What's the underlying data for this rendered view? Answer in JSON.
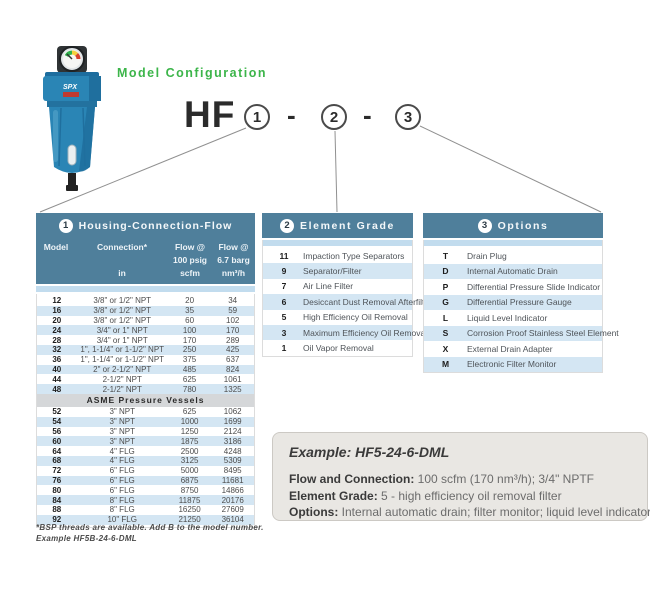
{
  "header": {
    "config_title": "Model Configuration",
    "model_prefix": "HF",
    "part1": "1",
    "part2": "2",
    "part3": "3",
    "dash": "-"
  },
  "product": {
    "brand": "SPX"
  },
  "housing": {
    "badge": "1",
    "title": "Housing-Connection-Flow",
    "columns": [
      {
        "l1": "Model",
        "l2": "",
        "l3": ""
      },
      {
        "l1": "Connection*",
        "l2": "",
        "l3": "in"
      },
      {
        "l1": "Flow @",
        "l2": "100 psig",
        "l3": "scfm"
      },
      {
        "l1": "Flow @",
        "l2": "6.7 barg",
        "l3": "nm³/h"
      }
    ],
    "rows": [
      [
        "12",
        "3/8\" or 1/2\" NPT",
        "20",
        "34"
      ],
      [
        "16",
        "3/8\" or 1/2\" NPT",
        "35",
        "59"
      ],
      [
        "20",
        "3/8\" or 1/2\" NPT",
        "60",
        "102"
      ],
      [
        "24",
        "3/4\" or 1\" NPT",
        "100",
        "170"
      ],
      [
        "28",
        "3/4\" or 1\" NPT",
        "170",
        "289"
      ],
      [
        "32",
        "1\", 1-1/4\" or 1-1/2\" NPT",
        "250",
        "425"
      ],
      [
        "36",
        "1\", 1-1/4\" or 1-1/2\" NPT",
        "375",
        "637"
      ],
      [
        "40",
        "2\" or 2-1/2\" NPT",
        "485",
        "824"
      ],
      [
        "44",
        "2-1/2\" NPT",
        "625",
        "1061"
      ],
      [
        "48",
        "2-1/2\" NPT",
        "780",
        "1325"
      ]
    ],
    "section_label": "ASME Pressure Vessels",
    "asme_rows": [
      [
        "52",
        "3\" NPT",
        "625",
        "1062"
      ],
      [
        "54",
        "3\" NPT",
        "1000",
        "1699"
      ],
      [
        "56",
        "3\" NPT",
        "1250",
        "2124"
      ],
      [
        "60",
        "3\" NPT",
        "1875",
        "3186"
      ],
      [
        "64",
        "4\" FLG",
        "2500",
        "4248"
      ],
      [
        "68",
        "4\" FLG",
        "3125",
        "5309"
      ],
      [
        "72",
        "6\" FLG",
        "5000",
        "8495"
      ],
      [
        "76",
        "6\" FLG",
        "6875",
        "11681"
      ],
      [
        "80",
        "6\" FLG",
        "8750",
        "14866"
      ],
      [
        "84",
        "8\" FLG",
        "11875",
        "20176"
      ],
      [
        "88",
        "8\" FLG",
        "16250",
        "27609"
      ],
      [
        "92",
        "10\" FLG",
        "21250",
        "36104"
      ]
    ],
    "footnote1": "*BSP threads are available. Add B to the model number.",
    "footnote2": "Example HF5B-24-6-DML"
  },
  "element_grade": {
    "badge": "2",
    "title": "Element Grade",
    "rows": [
      [
        "11",
        "Impaction Type Separators"
      ],
      [
        "9",
        "Separator/Filter"
      ],
      [
        "7",
        "Air Line Filter"
      ],
      [
        "6",
        "Desiccant Dust Removal Afterfilter"
      ],
      [
        "5",
        "High Efficiency Oil Removal"
      ],
      [
        "3",
        "Maximum Efficiency Oil Removal"
      ],
      [
        "1",
        "Oil Vapor Removal"
      ]
    ]
  },
  "options": {
    "badge": "3",
    "title": "Options",
    "rows": [
      [
        "T",
        "Drain Plug"
      ],
      [
        "D",
        "Internal Automatic Drain"
      ],
      [
        "P",
        "Differential Pressure Slide Indicator"
      ],
      [
        "G",
        "Differential Pressure Gauge"
      ],
      [
        "L",
        "Liquid Level Indicator"
      ],
      [
        "S",
        "Corrosion Proof Stainless Steel Element"
      ],
      [
        "X",
        "External Drain Adapter"
      ],
      [
        "M",
        "Electronic Filter Monitor"
      ]
    ]
  },
  "example": {
    "title": "Example: HF5-24-6-DML",
    "lines": [
      {
        "label": "Flow and Connection:",
        "value": "100 scfm (170 nm³/h); 3/4\" NPTF"
      },
      {
        "label": "Element Grade:",
        "value": "5 - high efficiency oil removal filter"
      },
      {
        "label": "Options:",
        "value": "Internal automatic drain; filter monitor; liquid level indicator"
      }
    ]
  },
  "colors": {
    "teal_header": "#4f7f9b",
    "stripe_blue": "#d4e6f3",
    "asme_band": "#d5d7d9",
    "accent_green": "#3cb54a",
    "example_bg": "#e9e7e3"
  }
}
